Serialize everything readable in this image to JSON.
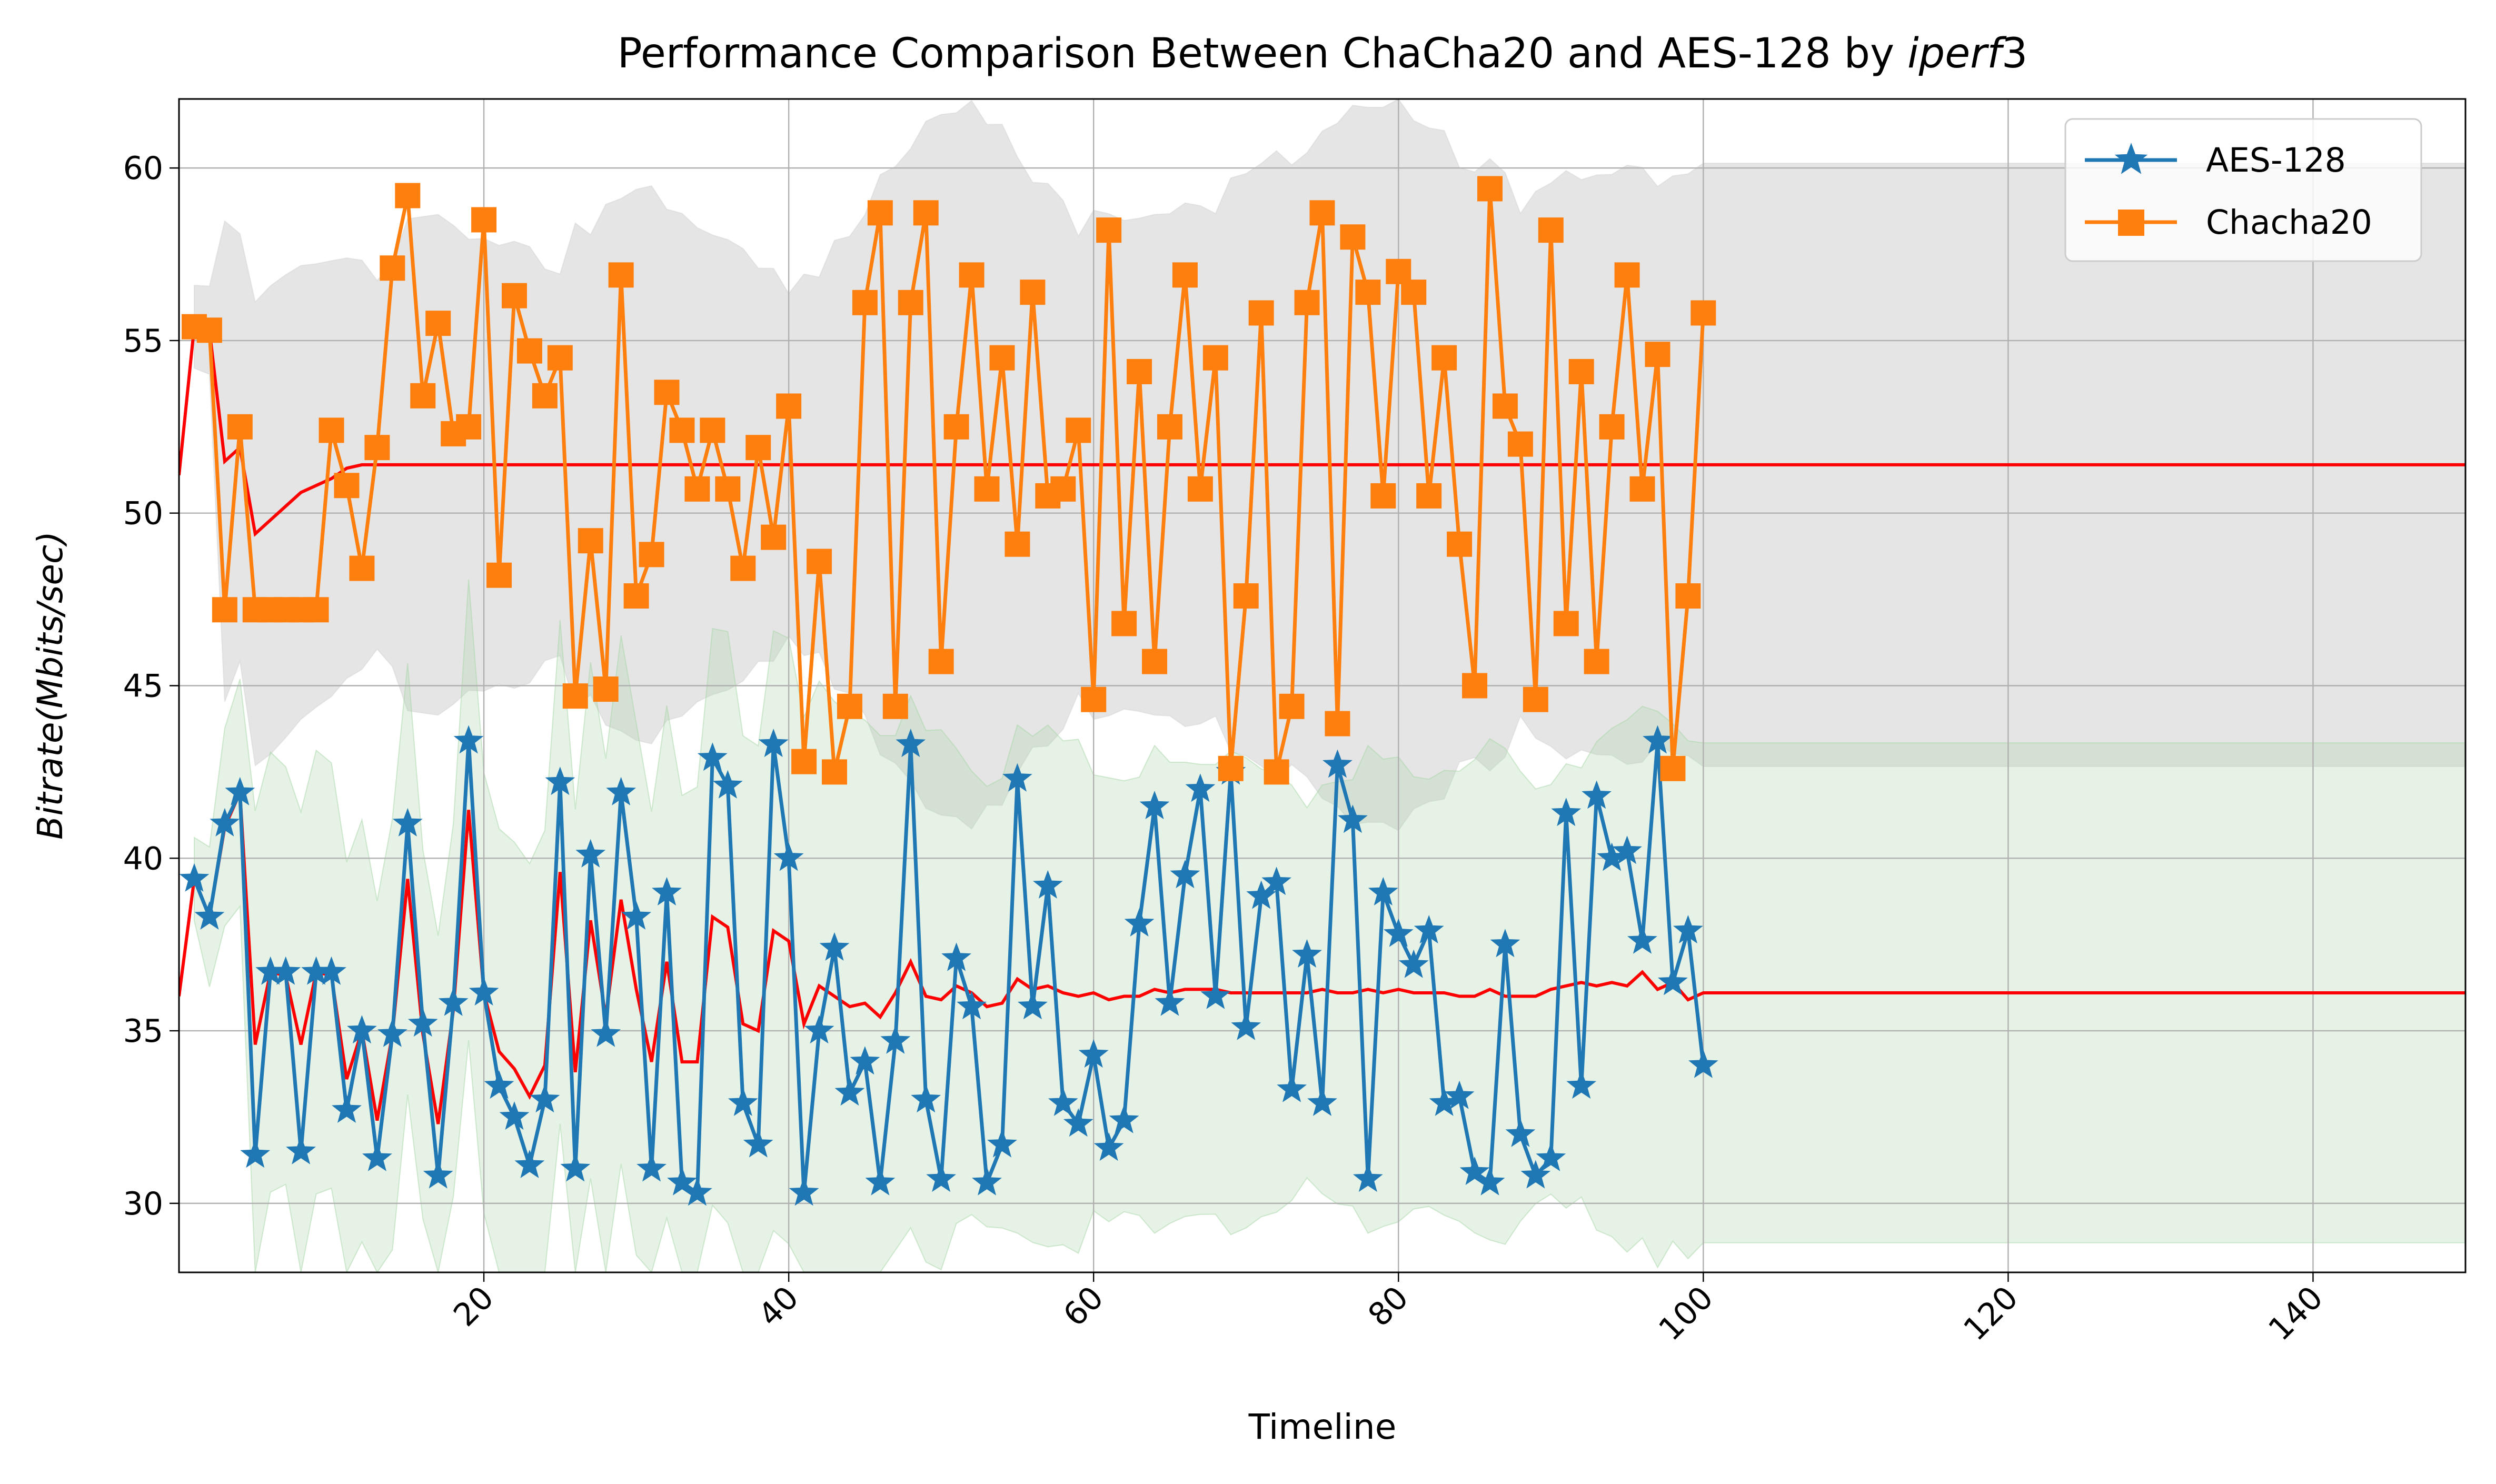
{
  "chart_data": {
    "type": "line",
    "title_main": "Performance Comparison Between ChaCha20 and AES-128 by ",
    "title_italic": "iperf",
    "title_tail": "3",
    "xlabel": "Timeline",
    "ylabel": "Bitrate(Mbits/sec)",
    "xlim": [
      0,
      150
    ],
    "ylim": [
      28,
      62
    ],
    "xticks": [
      20,
      40,
      60,
      80,
      100,
      120,
      140
    ],
    "xtick_labels": [
      "20",
      "40",
      "60",
      "80",
      "100",
      "120",
      "140"
    ],
    "yticks": [
      30,
      35,
      40,
      45,
      50,
      55,
      60
    ],
    "ytick_labels": [
      "30",
      "35",
      "40",
      "45",
      "50",
      "55",
      "60"
    ],
    "grid": true,
    "legend_position": "top-right",
    "colors": {
      "aes": "#1f77b4",
      "chacha": "#ff7f0e",
      "mean": "#ff0000",
      "band_chacha": "#d3d3d3",
      "band_aes": "#a8d5a8"
    },
    "series": [
      {
        "name": "AES-128",
        "marker": "star",
        "x": [
          1,
          2,
          3,
          4,
          5,
          6,
          7,
          8,
          9,
          10,
          11,
          12,
          13,
          14,
          15,
          16,
          17,
          18,
          19,
          20,
          21,
          22,
          23,
          24,
          25,
          26,
          27,
          28,
          29,
          30,
          31,
          32,
          33,
          34,
          35,
          36,
          37,
          38,
          39,
          40,
          41,
          42,
          43,
          44,
          45,
          46,
          47,
          48,
          49,
          50,
          51,
          52,
          53,
          54,
          55,
          56,
          57,
          58,
          59,
          60,
          61,
          62,
          63,
          64,
          65,
          66,
          67,
          68,
          69,
          70,
          71,
          72,
          73,
          74,
          75,
          76,
          77,
          78,
          79,
          80,
          81,
          82,
          83,
          84,
          85,
          86,
          87,
          88,
          89,
          90,
          91,
          92,
          93,
          94,
          95,
          96,
          97,
          98,
          99,
          100
        ],
        "values": [
          39.4,
          38.3,
          41.0,
          41.9,
          31.4,
          36.7,
          36.7,
          31.5,
          36.7,
          36.7,
          32.7,
          35.0,
          31.3,
          34.9,
          41.0,
          35.2,
          30.8,
          35.8,
          43.4,
          36.1,
          33.4,
          32.5,
          31.1,
          33.0,
          42.2,
          31.0,
          40.1,
          34.9,
          41.9,
          38.3,
          31.0,
          39.0,
          30.6,
          30.3,
          42.9,
          42.1,
          32.9,
          31.7,
          43.3,
          40.0,
          30.3,
          35.0,
          37.4,
          33.2,
          34.1,
          30.6,
          34.7,
          43.3,
          33.0,
          30.7,
          37.1,
          35.7,
          30.6,
          31.7,
          42.3,
          35.7,
          39.2,
          32.9,
          32.3,
          34.3,
          31.6,
          32.4,
          38.1,
          41.5,
          35.8,
          39.5,
          42.0,
          36.0,
          42.5,
          35.1,
          38.9,
          39.3,
          33.3,
          37.2,
          32.9,
          42.7,
          41.1,
          30.7,
          39.0,
          37.8,
          36.9,
          37.9,
          32.9,
          33.1,
          30.9,
          30.6,
          37.5,
          32.0,
          30.8,
          31.3,
          41.3,
          33.4,
          41.8,
          40.0,
          40.2,
          37.6,
          43.4,
          36.4,
          37.9,
          34.0
        ]
      },
      {
        "name": "Chacha20",
        "marker": "square",
        "x": [
          1,
          2,
          3,
          4,
          5,
          6,
          7,
          8,
          9,
          10,
          11,
          12,
          13,
          14,
          15,
          16,
          17,
          18,
          19,
          20,
          21,
          22,
          23,
          24,
          25,
          26,
          27,
          28,
          29,
          30,
          31,
          32,
          33,
          34,
          35,
          36,
          37,
          38,
          39,
          40,
          41,
          42,
          43,
          44,
          45,
          46,
          47,
          48,
          49,
          50,
          51,
          52,
          53,
          54,
          55,
          56,
          57,
          58,
          59,
          60,
          61,
          62,
          63,
          64,
          65,
          66,
          67,
          68,
          69,
          70,
          71,
          72,
          73,
          74,
          75,
          76,
          77,
          78,
          79,
          80,
          81,
          82,
          83,
          84,
          85,
          86,
          87,
          88,
          89,
          90,
          91,
          92,
          93,
          94,
          95,
          96,
          97,
          98,
          99,
          100
        ],
        "values": [
          55.4,
          55.3,
          47.2,
          52.5,
          47.2,
          47.2,
          47.2,
          47.2,
          47.2,
          52.4,
          50.8,
          48.4,
          51.9,
          57.1,
          59.2,
          53.4,
          55.5,
          52.3,
          52.5,
          58.5,
          48.2,
          56.3,
          54.7,
          53.4,
          54.5,
          44.7,
          49.2,
          44.9,
          56.9,
          47.6,
          48.8,
          53.5,
          52.4,
          50.7,
          52.4,
          50.7,
          48.4,
          51.9,
          49.3,
          53.1,
          42.8,
          48.6,
          42.5,
          44.4,
          56.1,
          58.7,
          44.4,
          56.1,
          58.7,
          45.7,
          52.5,
          56.9,
          50.7,
          54.5,
          49.1,
          56.4,
          50.5,
          50.7,
          52.4,
          44.6,
          58.2,
          46.8,
          54.1,
          45.7,
          52.5,
          56.9,
          50.7,
          54.5,
          42.6,
          47.6,
          55.8,
          42.5,
          44.4,
          56.1,
          58.7,
          43.9,
          58.0,
          56.4,
          50.5,
          57.0,
          56.4,
          50.5,
          54.5,
          49.1,
          45.0,
          59.4,
          53.1,
          52.0,
          44.6,
          58.2,
          46.8,
          54.1,
          45.7,
          52.5,
          56.9,
          50.7,
          54.6,
          42.6,
          47.6,
          55.8
        ]
      }
    ],
    "running_mean_chacha": {
      "x": [
        0,
        1,
        2,
        3,
        4,
        5,
        6,
        7,
        8,
        9,
        10,
        11,
        12,
        13,
        14,
        15,
        150
      ],
      "values": [
        51.1,
        55.4,
        55.3,
        51.5,
        51.9,
        49.4,
        49.8,
        50.2,
        50.6,
        50.8,
        51.0,
        51.3,
        51.4,
        51.4,
        51.4,
        51.4,
        51.4
      ]
    },
    "running_mean_aes": {
      "x": [
        0,
        1,
        2,
        3,
        4,
        5,
        6,
        7,
        8,
        9,
        10,
        11,
        12,
        13,
        14,
        15,
        16,
        17,
        18,
        19,
        20,
        21,
        22,
        23,
        24,
        25,
        26,
        27,
        28,
        29,
        30,
        31,
        32,
        33,
        34,
        35,
        36,
        37,
        38,
        39,
        40,
        41,
        42,
        43,
        44,
        45,
        46,
        47,
        48,
        49,
        50,
        51,
        52,
        53,
        54,
        55,
        56,
        57,
        58,
        59,
        60,
        61,
        62,
        63,
        64,
        65,
        66,
        67,
        68,
        69,
        70,
        71,
        72,
        73,
        74,
        75,
        76,
        77,
        78,
        79,
        80,
        81,
        82,
        83,
        84,
        85,
        86,
        87,
        88,
        89,
        90,
        91,
        92,
        93,
        94,
        95,
        96,
        97,
        98,
        99,
        100,
        101,
        150
      ],
      "values": [
        36.0,
        39.4,
        38.3,
        40.9,
        41.9,
        34.6,
        36.7,
        36.6,
        34.6,
        36.7,
        36.6,
        33.6,
        35.0,
        32.4,
        34.9,
        39.4,
        34.9,
        32.3,
        35.6,
        41.4,
        36.1,
        34.4,
        33.9,
        33.1,
        34.0,
        39.6,
        33.8,
        38.2,
        35.4,
        38.8,
        36.2,
        34.1,
        37.0,
        34.1,
        34.1,
        38.3,
        38.0,
        35.2,
        35.0,
        37.9,
        37.6,
        35.2,
        36.3,
        36.0,
        35.7,
        35.8,
        35.4,
        36.1,
        37.0,
        36.0,
        35.9,
        36.3,
        36.1,
        35.7,
        35.8,
        36.5,
        36.2,
        36.3,
        36.1,
        36.0,
        36.1,
        35.9,
        36.0,
        36.0,
        36.2,
        36.1,
        36.2,
        36.2,
        36.2,
        36.1,
        36.1,
        36.1,
        36.1,
        36.1,
        36.1,
        36.2,
        36.1,
        36.1,
        36.2,
        36.1,
        36.2,
        36.1,
        36.1,
        36.1,
        36.0,
        36.0,
        36.2,
        36.0,
        36.0,
        36.0,
        36.2,
        36.3,
        36.4,
        36.3,
        36.4,
        36.3,
        36.7,
        36.2,
        36.4,
        35.9,
        36.1,
        36.1,
        36.1
      ]
    }
  }
}
